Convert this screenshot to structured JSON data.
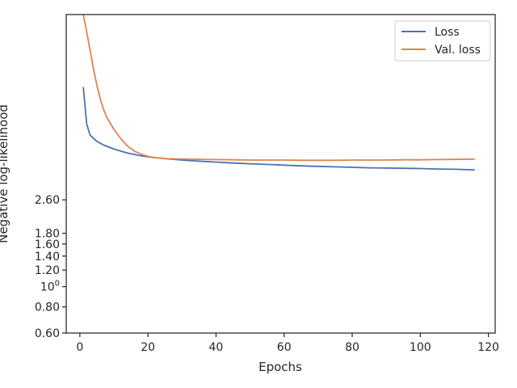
{
  "chart_data": {
    "type": "line",
    "xlabel": "Epochs",
    "ylabel": "Negative log-likelihood",
    "xlim": [
      -4,
      122
    ],
    "x_ticks": [
      0,
      20,
      40,
      60,
      80,
      100,
      120
    ],
    "y_scale": "log",
    "ylim": [
      0.6,
      20
    ],
    "y_tick_labels_readable": [
      "0.60",
      "0.80",
      "10^0",
      "1.20",
      "1.40",
      "1.60",
      "1.80",
      "2.60"
    ],
    "y_tick_values_readable": [
      0.6,
      0.8,
      1.0,
      1.2,
      1.4,
      1.6,
      1.8,
      2.6
    ],
    "legend": {
      "position": "top-right",
      "entries": [
        "Loss",
        "Val. loss"
      ]
    },
    "grid": false,
    "colors": {
      "Loss": "#4c72b0",
      "Val. loss": "#dd8452"
    },
    "series": [
      {
        "name": "Loss",
        "x": [
          1,
          2,
          3,
          5,
          7,
          10,
          14,
          18,
          22,
          26,
          30,
          35,
          40,
          45,
          50,
          55,
          60,
          65,
          70,
          75,
          80,
          85,
          90,
          95,
          100,
          105,
          110,
          116
        ],
        "y": [
          9.0,
          6.0,
          5.3,
          4.95,
          4.75,
          4.55,
          4.35,
          4.22,
          4.14,
          4.08,
          4.03,
          3.98,
          3.94,
          3.9,
          3.87,
          3.84,
          3.81,
          3.78,
          3.76,
          3.74,
          3.72,
          3.7,
          3.69,
          3.68,
          3.67,
          3.65,
          3.64,
          3.62
        ]
      },
      {
        "name": "Val. loss",
        "x": [
          1,
          2,
          3,
          4,
          5,
          6,
          7,
          8,
          10,
          12,
          14,
          16,
          18,
          20,
          22,
          25,
          28,
          32,
          36,
          40,
          45,
          50,
          55,
          60,
          65,
          70,
          75,
          80,
          85,
          90,
          95,
          100,
          105,
          110,
          116
        ],
        "y": [
          20.0,
          16.5,
          13.5,
          11.0,
          9.2,
          7.9,
          7.0,
          6.4,
          5.65,
          5.1,
          4.7,
          4.45,
          4.3,
          4.2,
          4.14,
          4.1,
          4.08,
          4.07,
          4.06,
          4.05,
          4.04,
          4.03,
          4.03,
          4.03,
          4.02,
          4.02,
          4.02,
          4.03,
          4.03,
          4.03,
          4.04,
          4.04,
          4.05,
          4.06,
          4.07
        ]
      }
    ]
  }
}
